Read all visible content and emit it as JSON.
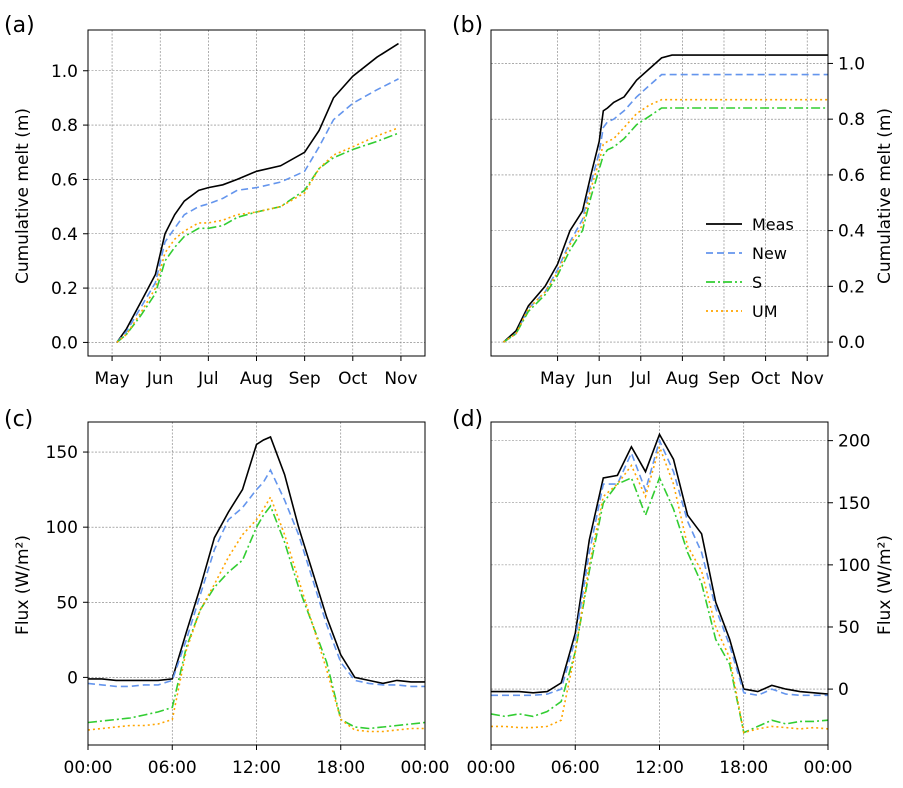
{
  "figure": {
    "panels": [
      {
        "label": "(a)",
        "ylabel": "Cumulative melt (m)"
      },
      {
        "label": "(b)",
        "ylabel": "Cumulative melt (m)"
      },
      {
        "label": "(c)",
        "ylabel": "Flux (W/m²)"
      },
      {
        "label": "(d)",
        "ylabel": "Flux (W/m²)"
      }
    ]
  },
  "colors": {
    "Meas": "#000000",
    "New": "#6495ed",
    "S": "#32cd32",
    "UM": "#ffa500"
  },
  "chart_data": [
    {
      "type": "line",
      "panel": "(a)",
      "xlabel": "",
      "ylabel": "Cumulative melt (m)",
      "x_ticks": [
        "May",
        "Jun",
        "Jul",
        "Aug",
        "Sep",
        "Oct",
        "Nov"
      ],
      "y_ticks": [
        "0.0",
        "0.2",
        "0.4",
        "0.6",
        "0.8",
        "1.0"
      ],
      "xlim": [
        -0.5,
        6.5
      ],
      "ylim": [
        -0.05,
        1.15
      ],
      "grid": true,
      "x": [
        0.1,
        0.3,
        0.6,
        0.9,
        1.1,
        1.3,
        1.5,
        1.8,
        2.0,
        2.3,
        2.6,
        3.0,
        3.5,
        4.0,
        4.3,
        4.6,
        5.0,
        5.5,
        5.95
      ],
      "series": [
        {
          "name": "Meas",
          "values": [
            0.0,
            0.05,
            0.15,
            0.25,
            0.4,
            0.47,
            0.52,
            0.56,
            0.57,
            0.58,
            0.6,
            0.63,
            0.65,
            0.7,
            0.78,
            0.9,
            0.98,
            1.05,
            1.1
          ]
        },
        {
          "name": "New",
          "values": [
            0.0,
            0.04,
            0.13,
            0.22,
            0.37,
            0.42,
            0.47,
            0.5,
            0.51,
            0.53,
            0.56,
            0.57,
            0.59,
            0.63,
            0.72,
            0.82,
            0.88,
            0.93,
            0.97
          ]
        },
        {
          "name": "S",
          "values": [
            0.0,
            0.03,
            0.1,
            0.18,
            0.3,
            0.35,
            0.39,
            0.42,
            0.42,
            0.43,
            0.46,
            0.48,
            0.5,
            0.56,
            0.64,
            0.68,
            0.71,
            0.74,
            0.77
          ]
        },
        {
          "name": "UM",
          "values": [
            0.0,
            0.03,
            0.11,
            0.2,
            0.33,
            0.38,
            0.41,
            0.44,
            0.44,
            0.45,
            0.47,
            0.48,
            0.5,
            0.55,
            0.64,
            0.69,
            0.72,
            0.76,
            0.79
          ]
        }
      ]
    },
    {
      "type": "line",
      "panel": "(b)",
      "xlabel": "",
      "ylabel": "Cumulative melt (m)",
      "x_ticks": [
        "May",
        "Jun",
        "Jul",
        "Aug",
        "Sep",
        "Oct",
        "Nov"
      ],
      "y_ticks": [
        "0.0",
        "0.2",
        "0.4",
        "0.6",
        "0.8",
        "1.0"
      ],
      "xlim": [
        -1.6,
        6.5
      ],
      "ylim": [
        -0.05,
        1.12
      ],
      "grid": true,
      "legend": {
        "entries": [
          "Meas",
          "New",
          "S",
          "UM"
        ],
        "placement": "center-right"
      },
      "x": [
        -1.3,
        -1.0,
        -0.7,
        -0.3,
        0.0,
        0.3,
        0.6,
        0.8,
        1.0,
        1.1,
        1.2,
        1.35,
        1.6,
        1.9,
        2.2,
        2.5,
        2.75,
        3.5,
        4.5,
        5.5,
        6.5
      ],
      "series": [
        {
          "name": "Meas",
          "values": [
            0.0,
            0.04,
            0.13,
            0.2,
            0.28,
            0.4,
            0.47,
            0.6,
            0.72,
            0.83,
            0.84,
            0.86,
            0.88,
            0.94,
            0.98,
            1.02,
            1.03,
            1.03,
            1.03,
            1.03,
            1.03
          ]
        },
        {
          "name": "New",
          "values": [
            0.0,
            0.03,
            0.12,
            0.18,
            0.26,
            0.36,
            0.44,
            0.57,
            0.68,
            0.77,
            0.79,
            0.8,
            0.83,
            0.88,
            0.92,
            0.96,
            0.96,
            0.96,
            0.96,
            0.96,
            0.96
          ]
        },
        {
          "name": "S",
          "values": [
            0.0,
            0.03,
            0.11,
            0.17,
            0.24,
            0.33,
            0.4,
            0.52,
            0.62,
            0.67,
            0.69,
            0.7,
            0.73,
            0.78,
            0.81,
            0.84,
            0.84,
            0.84,
            0.84,
            0.84,
            0.84
          ]
        },
        {
          "name": "UM",
          "values": [
            0.0,
            0.03,
            0.12,
            0.18,
            0.25,
            0.35,
            0.42,
            0.55,
            0.65,
            0.71,
            0.72,
            0.73,
            0.77,
            0.82,
            0.85,
            0.87,
            0.87,
            0.87,
            0.87,
            0.87,
            0.87
          ]
        }
      ]
    },
    {
      "type": "line",
      "panel": "(c)",
      "xlabel": "",
      "ylabel": "Flux (W/m²)",
      "x_ticks": [
        "00:00",
        "06:00",
        "12:00",
        "18:00",
        "00:00"
      ],
      "y_ticks": [
        "0",
        "50",
        "100",
        "150"
      ],
      "xlim": [
        0,
        24
      ],
      "ylim": [
        -45,
        170
      ],
      "grid": true,
      "x": [
        0,
        1,
        2,
        3,
        4,
        5,
        6,
        7,
        8,
        9,
        10,
        11,
        12,
        12.5,
        13,
        14,
        15,
        16,
        17,
        18,
        19,
        20,
        21,
        22,
        23,
        24
      ],
      "series": [
        {
          "name": "Meas",
          "values": [
            -1,
            -1,
            -2,
            -2,
            -2,
            -2,
            -1,
            30,
            60,
            93,
            110,
            125,
            155,
            158,
            160,
            135,
            100,
            70,
            40,
            15,
            0,
            -2,
            -4,
            -2,
            -3,
            -3
          ]
        },
        {
          "name": "New",
          "values": [
            -4,
            -5,
            -6,
            -6,
            -5,
            -5,
            -2,
            25,
            55,
            85,
            105,
            113,
            125,
            130,
            138,
            118,
            95,
            65,
            35,
            10,
            -2,
            -4,
            -5,
            -5,
            -6,
            -6
          ]
        },
        {
          "name": "S",
          "values": [
            -30,
            -29,
            -28,
            -27,
            -25,
            -23,
            -20,
            20,
            45,
            60,
            70,
            78,
            100,
            108,
            114,
            90,
            60,
            35,
            10,
            -28,
            -33,
            -34,
            -33,
            -32,
            -31,
            -30
          ]
        },
        {
          "name": "UM",
          "values": [
            -35,
            -34,
            -33,
            -32,
            -32,
            -31,
            -28,
            18,
            45,
            62,
            80,
            95,
            105,
            112,
            120,
            95,
            65,
            35,
            5,
            -28,
            -35,
            -36,
            -36,
            -35,
            -34,
            -34
          ]
        }
      ]
    },
    {
      "type": "line",
      "panel": "(d)",
      "xlabel": "",
      "ylabel": "Flux (W/m²)",
      "x_ticks": [
        "00:00",
        "06:00",
        "12:00",
        "18:00",
        "00:00"
      ],
      "y_ticks": [
        "0",
        "50",
        "100",
        "150",
        "200"
      ],
      "xlim": [
        0,
        24
      ],
      "ylim": [
        -45,
        215
      ],
      "grid": true,
      "x": [
        0,
        1,
        2,
        3,
        4,
        5,
        6,
        7,
        8,
        9,
        10,
        11,
        12,
        13,
        14,
        15,
        16,
        17,
        18,
        19,
        20,
        21,
        22,
        23,
        24
      ],
      "series": [
        {
          "name": "Meas",
          "values": [
            -2,
            -2,
            -2,
            -3,
            -2,
            5,
            45,
            120,
            170,
            172,
            195,
            175,
            205,
            185,
            140,
            125,
            70,
            40,
            0,
            -2,
            3,
            0,
            -2,
            -3,
            -4
          ]
        },
        {
          "name": "New",
          "values": [
            -5,
            -5,
            -5,
            -5,
            -4,
            0,
            40,
            110,
            165,
            165,
            190,
            160,
            200,
            175,
            135,
            110,
            65,
            35,
            -3,
            -5,
            0,
            -4,
            -5,
            -5,
            -5
          ]
        },
        {
          "name": "S",
          "values": [
            -20,
            -22,
            -20,
            -22,
            -18,
            -10,
            30,
            95,
            150,
            165,
            170,
            140,
            170,
            145,
            110,
            85,
            40,
            20,
            -35,
            -30,
            -25,
            -28,
            -26,
            -26,
            -25
          ]
        },
        {
          "name": "UM",
          "values": [
            -30,
            -30,
            -31,
            -31,
            -30,
            -25,
            30,
            100,
            155,
            165,
            180,
            155,
            195,
            165,
            115,
            95,
            50,
            25,
            -35,
            -32,
            -30,
            -31,
            -32,
            -31,
            -32
          ]
        }
      ]
    }
  ]
}
